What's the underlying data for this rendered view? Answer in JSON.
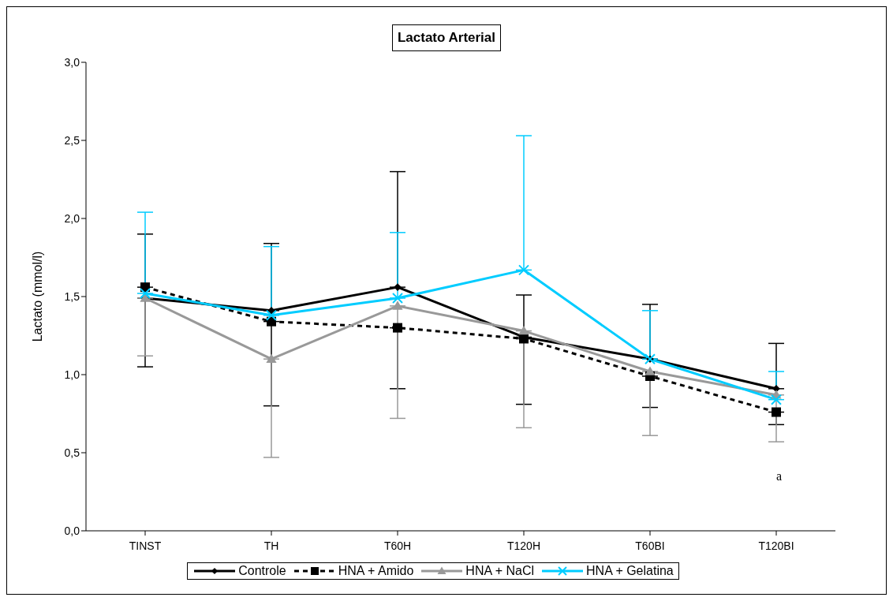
{
  "chart_data": {
    "type": "line",
    "title": "Lactato Arterial",
    "ylabel": "Lactato (mmol/l)",
    "categories": [
      "TINST",
      "TH",
      "T60H",
      "T120H",
      "T60BI",
      "T120BI"
    ],
    "ylim": [
      0,
      3
    ],
    "yticks": [
      {
        "value": 0,
        "label": "0,0"
      },
      {
        "value": 0.5,
        "label": "0,5"
      },
      {
        "value": 1,
        "label": "1,0"
      },
      {
        "value": 1.5,
        "label": "1,5"
      },
      {
        "value": 2,
        "label": "2,0"
      },
      {
        "value": 2.5,
        "label": "2,5"
      },
      {
        "value": 3,
        "label": "3,0"
      }
    ],
    "grid": false,
    "legend": "bottom",
    "annotations": [
      "a"
    ],
    "series": [
      {
        "name": "Controle",
        "color": "#000000",
        "marker": "diamond",
        "line_style": "solid",
        "values": [
          1.49,
          1.41,
          1.56,
          1.24,
          1.1,
          0.91
        ],
        "errors": [
          [
            1.49,
            1.9
          ],
          [
            1.41,
            1.84
          ],
          [
            1.56,
            2.3
          ],
          [
            1.24,
            1.51
          ],
          [
            1.1,
            1.45
          ],
          [
            0.91,
            1.2
          ]
        ]
      },
      {
        "name": "HNA + Amido",
        "color": "#000000",
        "marker": "square",
        "line_style": "dashed",
        "values": [
          1.56,
          1.34,
          1.3,
          1.23,
          0.99,
          0.76
        ],
        "errors": [
          [
            1.05,
            1.56
          ],
          [
            0.8,
            1.34
          ],
          [
            0.91,
            1.3
          ],
          [
            0.81,
            1.23
          ],
          [
            0.79,
            0.99
          ],
          [
            0.68,
            0.76
          ]
        ]
      },
      {
        "name": "HNA + NaCl",
        "color": "#999999",
        "marker": "triangle",
        "line_style": "solid",
        "values": [
          1.49,
          1.1,
          1.44,
          1.28,
          1.02,
          0.87
        ],
        "errors": [
          [
            1.12,
            1.49
          ],
          [
            0.47,
            1.1
          ],
          [
            0.72,
            1.44
          ],
          [
            0.66,
            1.28
          ],
          [
            0.61,
            1.02
          ],
          [
            0.57,
            0.87
          ]
        ]
      },
      {
        "name": "HNA + Gelatina",
        "color": "#00ccff",
        "marker": "cross",
        "line_style": "solid",
        "values": [
          1.52,
          1.38,
          1.49,
          1.67,
          1.1,
          0.84
        ],
        "errors": [
          [
            1.52,
            2.04
          ],
          [
            1.38,
            1.82
          ],
          [
            1.49,
            1.91
          ],
          [
            1.67,
            2.53
          ],
          [
            1.1,
            1.41
          ],
          [
            0.84,
            1.02
          ]
        ]
      }
    ]
  }
}
